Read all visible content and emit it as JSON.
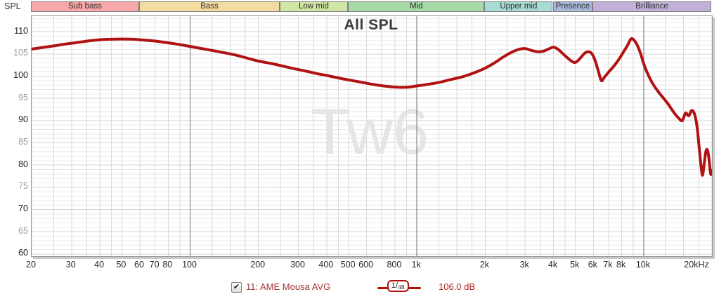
{
  "axis": {
    "spl_label": "SPL"
  },
  "watermark": "Tw6",
  "icons": {
    "checkmark": "✔"
  },
  "legend": {
    "checkbox_checked": true,
    "trace_label": "11: AME Mousa AVG",
    "smoothing_numerator": "1/",
    "smoothing_denominator": "48",
    "level_readout": "106.0 dB"
  },
  "bands": [
    {
      "label": "Sub bass",
      "from": 20,
      "to": 60,
      "color": "#f8a8a8"
    },
    {
      "label": "Bass",
      "from": 60,
      "to": 250,
      "color": "#f2dca2"
    },
    {
      "label": "Low mid",
      "from": 250,
      "to": 500,
      "color": "#cfe6a4"
    },
    {
      "label": "Mid",
      "from": 500,
      "to": 2000,
      "color": "#a6dba8"
    },
    {
      "label": "Upper mid",
      "from": 2000,
      "to": 4000,
      "color": "#a6dcd4"
    },
    {
      "label": "Presence",
      "from": 4000,
      "to": 6000,
      "color": "#a9b9dc"
    },
    {
      "label": "Brilliance",
      "from": 6000,
      "to": 20000,
      "color": "#c2b0d8"
    }
  ],
  "chart_data": {
    "type": "line",
    "title": "All SPL",
    "ylabel": "SPL",
    "x_scale": "log",
    "xlim": [
      20,
      20000
    ],
    "ylim": [
      59.5,
      113.5
    ],
    "y_major_tick_step": 5,
    "y_labeled_ticks": [
      110,
      105,
      100,
      95,
      90,
      85,
      80,
      75,
      70,
      65,
      60
    ],
    "x_ticks": [
      {
        "f": 20,
        "label": "20"
      },
      {
        "f": 30,
        "label": "30"
      },
      {
        "f": 40,
        "label": "40"
      },
      {
        "f": 50,
        "label": "50"
      },
      {
        "f": 60,
        "label": "60"
      },
      {
        "f": 70,
        "label": "70"
      },
      {
        "f": 80,
        "label": "80"
      },
      {
        "f": 100,
        "label": "100"
      },
      {
        "f": 200,
        "label": "200"
      },
      {
        "f": 300,
        "label": "300"
      },
      {
        "f": 400,
        "label": "400"
      },
      {
        "f": 500,
        "label": "500"
      },
      {
        "f": 600,
        "label": "600"
      },
      {
        "f": 800,
        "label": "800"
      },
      {
        "f": 1000,
        "label": "1k"
      },
      {
        "f": 2000,
        "label": "2k"
      },
      {
        "f": 3000,
        "label": "3k"
      },
      {
        "f": 4000,
        "label": "4k"
      },
      {
        "f": 5000,
        "label": "5k"
      },
      {
        "f": 6000,
        "label": "6k"
      },
      {
        "f": 7000,
        "label": "7k"
      },
      {
        "f": 8000,
        "label": "8k"
      },
      {
        "f": 10000,
        "label": "10k"
      },
      {
        "f": 20000,
        "label": "20kHz"
      }
    ],
    "grid_freqs": [
      20,
      25,
      30,
      35,
      40,
      45,
      50,
      60,
      70,
      80,
      90,
      100,
      125,
      150,
      175,
      200,
      250,
      300,
      350,
      400,
      450,
      500,
      600,
      700,
      800,
      900,
      1000,
      1250,
      1500,
      1750,
      2000,
      2500,
      3000,
      3500,
      4000,
      4500,
      5000,
      6000,
      7000,
      8000,
      9000,
      10000,
      12500,
      15000,
      17500,
      20000
    ],
    "major_vlines": [
      100,
      1000,
      10000
    ],
    "grid_colors": {
      "h_minor": "#eaeaea",
      "h_labeled": "#d4d4d4",
      "v_minor": "#dadada",
      "v_major": "#6e6e6e"
    },
    "watermark_color": "#e5e5e5",
    "series": [
      {
        "name": "11: AME Mousa AVG",
        "color": "#b01212",
        "stroke_width": 4,
        "points": [
          [
            20,
            106.1
          ],
          [
            22,
            106.4
          ],
          [
            25,
            106.8
          ],
          [
            28,
            107.2
          ],
          [
            32,
            107.6
          ],
          [
            36,
            107.95
          ],
          [
            40,
            108.2
          ],
          [
            45,
            108.3
          ],
          [
            50,
            108.35
          ],
          [
            56,
            108.3
          ],
          [
            63,
            108.1
          ],
          [
            70,
            107.9
          ],
          [
            80,
            107.5
          ],
          [
            90,
            107.1
          ],
          [
            100,
            106.7
          ],
          [
            110,
            106.3
          ],
          [
            125,
            105.8
          ],
          [
            140,
            105.3
          ],
          [
            160,
            104.7
          ],
          [
            180,
            104.0
          ],
          [
            200,
            103.4
          ],
          [
            225,
            102.9
          ],
          [
            250,
            102.4
          ],
          [
            280,
            101.8
          ],
          [
            320,
            101.2
          ],
          [
            360,
            100.6
          ],
          [
            400,
            100.15
          ],
          [
            450,
            99.6
          ],
          [
            500,
            99.15
          ],
          [
            560,
            98.7
          ],
          [
            630,
            98.2
          ],
          [
            700,
            97.85
          ],
          [
            800,
            97.55
          ],
          [
            900,
            97.5
          ],
          [
            1000,
            97.8
          ],
          [
            1100,
            98.1
          ],
          [
            1250,
            98.6
          ],
          [
            1400,
            99.2
          ],
          [
            1600,
            99.9
          ],
          [
            1800,
            100.8
          ],
          [
            2000,
            101.8
          ],
          [
            2200,
            103.0
          ],
          [
            2400,
            104.3
          ],
          [
            2600,
            105.3
          ],
          [
            2800,
            106.0
          ],
          [
            3000,
            106.2
          ],
          [
            3200,
            105.8
          ],
          [
            3400,
            105.5
          ],
          [
            3600,
            105.6
          ],
          [
            3800,
            106.1
          ],
          [
            4000,
            106.5
          ],
          [
            4200,
            106.0
          ],
          [
            4500,
            104.6
          ],
          [
            4800,
            103.4
          ],
          [
            5000,
            103.1
          ],
          [
            5200,
            103.8
          ],
          [
            5500,
            105.2
          ],
          [
            5700,
            105.5
          ],
          [
            5900,
            105.1
          ],
          [
            6100,
            103.6
          ],
          [
            6300,
            101.3
          ],
          [
            6500,
            99.0
          ],
          [
            6700,
            99.7
          ],
          [
            7000,
            100.9
          ],
          [
            7400,
            102.3
          ],
          [
            7800,
            103.9
          ],
          [
            8200,
            105.7
          ],
          [
            8500,
            107.0
          ],
          [
            8800,
            108.4
          ],
          [
            9100,
            108.0
          ],
          [
            9400,
            106.8
          ],
          [
            9700,
            105.0
          ],
          [
            10000,
            102.8
          ],
          [
            10400,
            100.6
          ],
          [
            11000,
            98.2
          ],
          [
            11800,
            96.0
          ],
          [
            12700,
            94.0
          ],
          [
            13600,
            91.8
          ],
          [
            14300,
            90.5
          ],
          [
            14800,
            90.0
          ],
          [
            15300,
            91.7
          ],
          [
            15800,
            91.1
          ],
          [
            16300,
            92.3
          ],
          [
            16800,
            91.3
          ],
          [
            17200,
            88.5
          ],
          [
            17600,
            83.5
          ],
          [
            18000,
            78.8
          ],
          [
            18200,
            77.8
          ],
          [
            18500,
            80.5
          ],
          [
            18800,
            83.0
          ],
          [
            19100,
            83.4
          ],
          [
            19400,
            81.5
          ],
          [
            19700,
            78.2
          ],
          [
            19900,
            78.0
          ],
          [
            20000,
            78.8
          ]
        ]
      }
    ]
  }
}
